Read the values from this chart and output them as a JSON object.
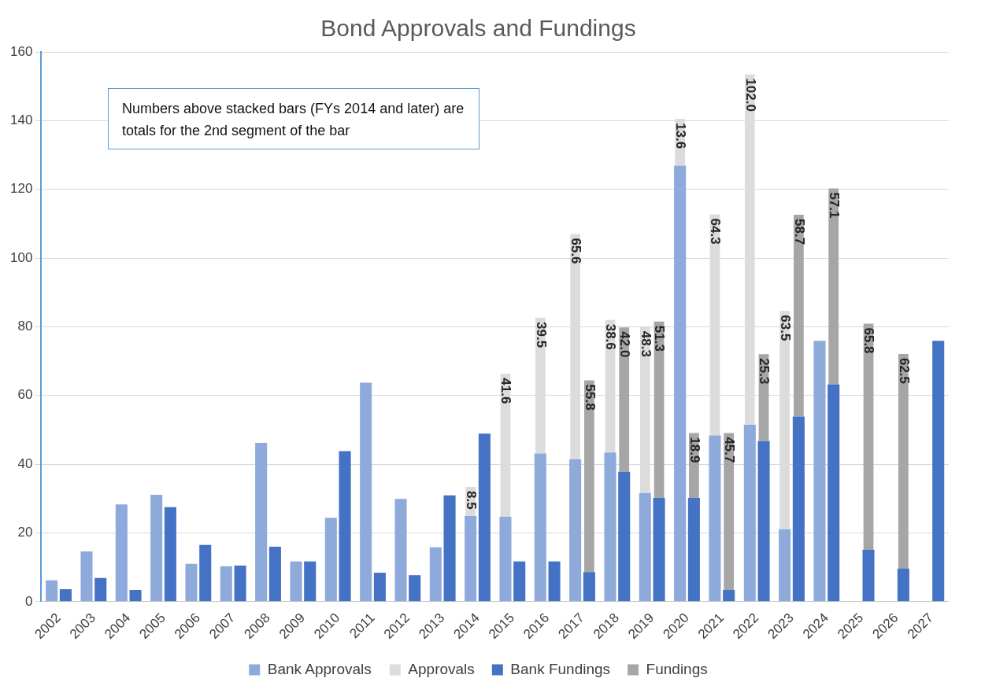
{
  "chart_data": {
    "type": "bar",
    "title": "Bond Approvals and Fundings",
    "grid": "y",
    "legend": "bottom",
    "categories": [
      "2002",
      "2003",
      "2004",
      "2005",
      "2006",
      "2007",
      "2008",
      "2009",
      "2010",
      "2011",
      "2012",
      "2013",
      "2014",
      "2015",
      "2016",
      "2017",
      "2018",
      "2019",
      "2020",
      "2021",
      "2022",
      "2023",
      "2024",
      "2025",
      "2026",
      "2027"
    ],
    "ylim": [
      0,
      160
    ],
    "yticks": [
      0,
      20,
      40,
      60,
      80,
      100,
      120,
      140,
      160
    ],
    "annotations": [
      "Numbers above stacked bars (FYs 2014 and later) are totals for the 2nd segment of the bar"
    ],
    "series": [
      {
        "name": "Bank Approvals",
        "color": "#8eaadb",
        "values": [
          6.2,
          14.6,
          28.3,
          31.1,
          11.0,
          10.3,
          46.2,
          11.7,
          24.4,
          63.7,
          29.9,
          15.8,
          24.9,
          24.7,
          43.1,
          41.4,
          43.4,
          31.6,
          126.9,
          48.4,
          51.5,
          21.1,
          75.9,
          null,
          null,
          null
        ]
      },
      {
        "name": "Approvals",
        "color": "#dcdcdc",
        "base": [
          null,
          null,
          null,
          null,
          null,
          null,
          null,
          null,
          null,
          null,
          null,
          null,
          24.9,
          24.7,
          43.1,
          41.4,
          43.4,
          31.6,
          126.9,
          48.4,
          51.5,
          21.1,
          null,
          null,
          null,
          null
        ],
        "values": [
          null,
          null,
          null,
          null,
          null,
          null,
          null,
          null,
          null,
          null,
          null,
          null,
          8.5,
          41.6,
          39.5,
          65.6,
          38.6,
          48.3,
          13.6,
          64.3,
          102.0,
          63.5,
          null,
          null,
          null,
          null
        ],
        "value_labels": [
          null,
          null,
          null,
          null,
          null,
          null,
          null,
          null,
          null,
          null,
          null,
          null,
          "8.5",
          "41.6",
          "39.5",
          "65.6",
          "38.6",
          "48.3",
          "13.6",
          "64.3",
          "102.0",
          "63.5",
          null,
          null,
          null,
          null
        ]
      },
      {
        "name": "Bank Fundings",
        "color": "#4472c4",
        "values": [
          3.6,
          6.9,
          3.4,
          27.5,
          16.5,
          10.5,
          16.0,
          11.7,
          43.8,
          8.4,
          7.7,
          30.9,
          48.9,
          11.7,
          11.7,
          8.6,
          37.8,
          30.2,
          30.2,
          3.4,
          46.7,
          53.9,
          63.2,
          15.1,
          9.6,
          75.9
        ]
      },
      {
        "name": "Fundings",
        "color": "#a6a6a6",
        "base": [
          null,
          null,
          null,
          null,
          null,
          null,
          null,
          null,
          null,
          null,
          null,
          null,
          null,
          null,
          null,
          8.6,
          37.8,
          30.2,
          30.2,
          3.4,
          46.7,
          53.9,
          63.2,
          15.1,
          9.6,
          null
        ],
        "values": [
          null,
          null,
          null,
          null,
          null,
          null,
          null,
          null,
          null,
          null,
          null,
          null,
          null,
          null,
          null,
          55.8,
          42.0,
          51.3,
          18.9,
          45.7,
          25.3,
          58.7,
          57.1,
          65.8,
          62.5,
          null
        ],
        "value_labels": [
          null,
          null,
          null,
          null,
          null,
          null,
          null,
          null,
          null,
          null,
          null,
          null,
          null,
          null,
          null,
          "55.8",
          "42.0",
          "51.3",
          "18.9",
          "45.7",
          "25.3",
          "58.7",
          "57.1",
          "65.8",
          "62.5",
          null
        ]
      }
    ]
  }
}
